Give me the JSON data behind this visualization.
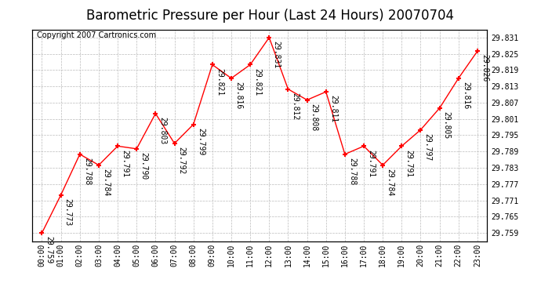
{
  "title": "Barometric Pressure per Hour (Last 24 Hours) 20070704",
  "copyright": "Copyright 2007 Cartronics.com",
  "hours": [
    "00:00",
    "01:00",
    "02:00",
    "03:00",
    "04:00",
    "05:00",
    "06:00",
    "07:00",
    "08:00",
    "09:00",
    "10:00",
    "11:00",
    "12:00",
    "13:00",
    "14:00",
    "15:00",
    "16:00",
    "17:00",
    "18:00",
    "19:00",
    "20:00",
    "21:00",
    "22:00",
    "23:00"
  ],
  "values": [
    29.759,
    29.773,
    29.788,
    29.784,
    29.791,
    29.79,
    29.803,
    29.792,
    29.799,
    29.821,
    29.816,
    29.821,
    29.831,
    29.812,
    29.808,
    29.811,
    29.788,
    29.791,
    29.784,
    29.791,
    29.797,
    29.805,
    29.816,
    29.826
  ],
  "line_color": "red",
  "marker": "+",
  "marker_color": "red",
  "marker_size": 5,
  "background_color": "white",
  "grid_color": "#bbbbbb",
  "ylim_min": 29.756,
  "ylim_max": 29.834,
  "ytick_values": [
    29.759,
    29.765,
    29.771,
    29.777,
    29.783,
    29.789,
    29.795,
    29.801,
    29.807,
    29.813,
    29.819,
    29.825,
    29.831
  ],
  "title_fontsize": 12,
  "copyright_fontsize": 7,
  "label_fontsize": 7,
  "annotation_fontsize": 7,
  "tick_label_fontsize": 7
}
